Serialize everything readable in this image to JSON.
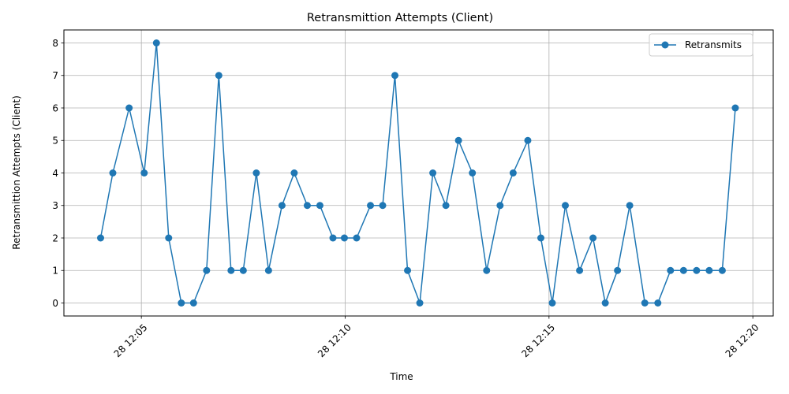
{
  "chart_data": {
    "type": "line",
    "title": "Retransmittion Attempts (Client)",
    "xlabel": "Time",
    "ylabel": "Retransmittion Attempts (Client)",
    "x_unit": "minutes after 28 12:00",
    "xlim": [
      3.1,
      20.5
    ],
    "ylim": [
      -0.4,
      8.4
    ],
    "grid": true,
    "legend_position": "top-right",
    "x_ticks": [
      {
        "value": 5,
        "label": "28 12:05"
      },
      {
        "value": 10,
        "label": "28 12:10"
      },
      {
        "value": 15,
        "label": "28 12:15"
      },
      {
        "value": 20,
        "label": "28 12:20"
      }
    ],
    "y_ticks": [
      {
        "value": 0,
        "label": "0"
      },
      {
        "value": 1,
        "label": "1"
      },
      {
        "value": 2,
        "label": "2"
      },
      {
        "value": 3,
        "label": "3"
      },
      {
        "value": 4,
        "label": "4"
      },
      {
        "value": 5,
        "label": "5"
      },
      {
        "value": 6,
        "label": "6"
      },
      {
        "value": 7,
        "label": "7"
      },
      {
        "value": 8,
        "label": "8"
      }
    ],
    "series": [
      {
        "name": "Retransmits",
        "color": "#1f77b4",
        "x": [
          4.0,
          4.3,
          4.7,
          5.07,
          5.37,
          5.67,
          5.98,
          6.28,
          6.6,
          6.9,
          7.2,
          7.5,
          7.82,
          8.12,
          8.45,
          8.75,
          9.07,
          9.38,
          9.7,
          9.98,
          10.28,
          10.62,
          10.92,
          11.22,
          11.53,
          11.83,
          12.15,
          12.47,
          12.78,
          13.12,
          13.47,
          13.8,
          14.12,
          14.48,
          14.8,
          15.08,
          15.4,
          15.75,
          16.08,
          16.38,
          16.68,
          16.98,
          17.35,
          17.67,
          17.98,
          18.3,
          18.62,
          18.93,
          19.25,
          19.57
        ],
        "values": [
          2,
          4,
          6,
          4,
          8,
          2,
          0,
          0,
          1,
          7,
          1,
          1,
          4,
          1,
          3,
          4,
          3,
          3,
          2,
          2,
          2,
          3,
          3,
          7,
          1,
          0,
          4,
          3,
          5,
          4,
          1,
          3,
          4,
          5,
          2,
          0,
          3,
          1,
          2,
          0,
          1,
          3,
          0,
          0,
          1,
          1,
          1,
          1,
          1,
          6
        ]
      }
    ]
  }
}
